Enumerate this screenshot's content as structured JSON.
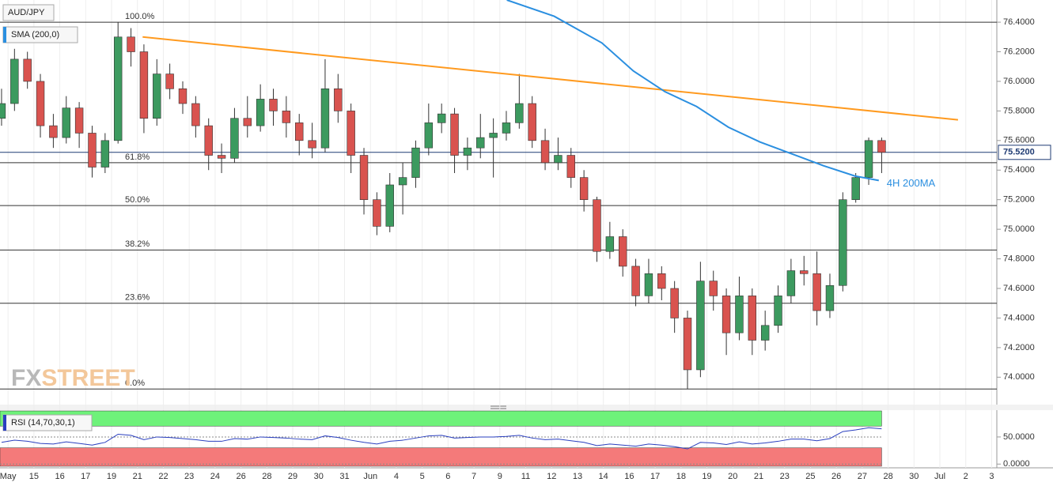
{
  "chart_data": {
    "type": "candlestick",
    "title": "AUD/JPY",
    "legend": "SMA (200,0)",
    "watermark": [
      "FX",
      "STREET"
    ],
    "up_color": "#3c9a5f",
    "down_color": "#d9534f",
    "x": [
      -0.25,
      0.25,
      0.75,
      1.25,
      1.75,
      2.25,
      2.75,
      3.25,
      3.75,
      4.25,
      4.75,
      5.25,
      5.75,
      6.25,
      6.75,
      7.25,
      7.75,
      8.25,
      8.75,
      9.25,
      9.75,
      10.25,
      10.75,
      11.25,
      11.75,
      12.25,
      12.75,
      13.25,
      13.75,
      14.25,
      14.75,
      15.25,
      15.75,
      16.25,
      16.75,
      17.25,
      17.75,
      18.25,
      18.75,
      19.25,
      19.75,
      20.25,
      20.75,
      21.25,
      21.75,
      22.25,
      22.75,
      23.25,
      23.75,
      24.25,
      24.75,
      25.25,
      25.75,
      26.25,
      26.75,
      27.25,
      27.75,
      28.25,
      28.75,
      29.25,
      29.75,
      30.25,
      30.75,
      31.25,
      31.75,
      32.25,
      32.75,
      33.25,
      33.75
    ],
    "open": [
      75.75,
      75.85,
      76.15,
      76.0,
      75.7,
      75.62,
      75.82,
      75.65,
      75.42,
      75.6,
      76.3,
      76.2,
      75.75,
      76.05,
      75.95,
      75.85,
      75.7,
      75.5,
      75.48,
      75.75,
      75.7,
      75.88,
      75.8,
      75.72,
      75.6,
      75.55,
      75.95,
      75.8,
      75.5,
      75.2,
      75.02,
      75.3,
      75.35,
      75.55,
      75.72,
      75.78,
      75.5,
      75.55,
      75.62,
      75.65,
      75.72,
      75.85,
      75.6,
      75.45,
      75.5,
      75.35,
      75.2,
      74.85,
      74.95,
      74.75,
      74.55,
      74.7,
      74.6,
      74.4,
      74.05,
      74.65,
      74.55,
      74.3,
      74.55,
      74.25,
      74.35,
      74.55,
      74.72,
      74.7,
      74.45,
      74.62,
      75.2,
      75.35,
      75.6
    ],
    "high": [
      75.95,
      76.22,
      76.2,
      76.05,
      75.78,
      75.9,
      75.86,
      75.7,
      75.65,
      76.4,
      76.36,
      76.25,
      76.15,
      76.12,
      76.0,
      75.9,
      75.75,
      75.58,
      75.82,
      75.9,
      75.98,
      75.95,
      75.9,
      75.78,
      75.72,
      76.15,
      76.05,
      75.85,
      75.55,
      75.25,
      75.38,
      75.45,
      75.6,
      75.85,
      75.85,
      75.82,
      75.62,
      75.78,
      75.75,
      75.8,
      76.05,
      75.9,
      75.68,
      75.62,
      75.55,
      75.4,
      75.22,
      75.05,
      75.0,
      74.8,
      74.8,
      74.75,
      74.65,
      74.45,
      74.78,
      74.72,
      74.6,
      74.68,
      74.6,
      74.45,
      74.62,
      74.8,
      74.82,
      74.85,
      74.7,
      75.25,
      75.38,
      75.62,
      75.62
    ],
    "low": [
      75.7,
      75.8,
      75.95,
      75.62,
      75.55,
      75.58,
      75.55,
      75.35,
      75.38,
      75.58,
      76.1,
      75.65,
      75.7,
      75.88,
      75.78,
      75.62,
      75.4,
      75.38,
      75.45,
      75.62,
      75.66,
      75.7,
      75.62,
      75.5,
      75.48,
      75.52,
      75.72,
      75.38,
      75.1,
      74.96,
      74.98,
      75.1,
      75.28,
      75.5,
      75.65,
      75.38,
      75.4,
      75.48,
      75.35,
      75.6,
      75.68,
      75.55,
      75.4,
      75.4,
      75.28,
      75.12,
      74.78,
      74.8,
      74.68,
      74.48,
      74.5,
      74.52,
      74.3,
      73.92,
      74.0,
      74.45,
      74.15,
      74.25,
      74.15,
      74.18,
      74.3,
      74.5,
      74.62,
      74.35,
      74.4,
      74.58,
      75.18,
      75.3,
      75.38
    ],
    "close": [
      75.85,
      76.15,
      76.0,
      75.7,
      75.62,
      75.82,
      75.65,
      75.42,
      75.6,
      76.3,
      76.2,
      75.75,
      76.05,
      75.95,
      75.85,
      75.7,
      75.5,
      75.48,
      75.75,
      75.7,
      75.88,
      75.8,
      75.72,
      75.6,
      75.55,
      75.95,
      75.8,
      75.5,
      75.2,
      75.02,
      75.3,
      75.35,
      75.55,
      75.72,
      75.78,
      75.5,
      75.55,
      75.62,
      75.65,
      75.72,
      75.85,
      75.6,
      75.45,
      75.5,
      75.35,
      75.2,
      74.85,
      74.95,
      74.75,
      74.55,
      74.7,
      74.6,
      74.4,
      74.05,
      74.65,
      74.55,
      74.3,
      74.55,
      74.25,
      74.35,
      74.55,
      74.72,
      74.7,
      74.45,
      74.62,
      75.2,
      75.35,
      75.6,
      75.52
    ],
    "xlim": [
      -0.31,
      38.2
    ],
    "xticks": [
      {
        "value": 0,
        "label": "May"
      },
      {
        "value": 1,
        "label": "15"
      },
      {
        "value": 2,
        "label": "16"
      },
      {
        "value": 3,
        "label": "17"
      },
      {
        "value": 4,
        "label": "19"
      },
      {
        "value": 5,
        "label": "21"
      },
      {
        "value": 6,
        "label": "22"
      },
      {
        "value": 7,
        "label": "23"
      },
      {
        "value": 8,
        "label": "24"
      },
      {
        "value": 9,
        "label": "26"
      },
      {
        "value": 10,
        "label": "28"
      },
      {
        "value": 11,
        "label": "29"
      },
      {
        "value": 12,
        "label": "30"
      },
      {
        "value": 13,
        "label": "31"
      },
      {
        "value": 14,
        "label": "Jun"
      },
      {
        "value": 15,
        "label": "4"
      },
      {
        "value": 16,
        "label": "5"
      },
      {
        "value": 17,
        "label": "6"
      },
      {
        "value": 18,
        "label": "7"
      },
      {
        "value": 19,
        "label": "9"
      },
      {
        "value": 20,
        "label": "11"
      },
      {
        "value": 21,
        "label": "12"
      },
      {
        "value": 22,
        "label": "13"
      },
      {
        "value": 23,
        "label": "14"
      },
      {
        "value": 24,
        "label": "16"
      },
      {
        "value": 25,
        "label": "17"
      },
      {
        "value": 26,
        "label": "18"
      },
      {
        "value": 27,
        "label": "19"
      },
      {
        "value": 28,
        "label": "20"
      },
      {
        "value": 29,
        "label": "21"
      },
      {
        "value": 30,
        "label": "23"
      },
      {
        "value": 31,
        "label": "25"
      },
      {
        "value": 32,
        "label": "26"
      },
      {
        "value": 33,
        "label": "27"
      },
      {
        "value": 34,
        "label": "28"
      },
      {
        "value": 35,
        "label": "30"
      },
      {
        "value": 36,
        "label": "Jul"
      },
      {
        "value": 37,
        "label": "2"
      },
      {
        "value": 38,
        "label": "3"
      }
    ],
    "ylim": [
      73.82,
      76.55
    ],
    "yticks": [
      {
        "value": 76.4,
        "label": "76.4000"
      },
      {
        "value": 76.2,
        "label": "76.2000"
      },
      {
        "value": 76.0,
        "label": "76.0000"
      },
      {
        "value": 75.8,
        "label": "75.8000"
      },
      {
        "value": 75.6,
        "label": "75.6000"
      },
      {
        "value": 75.4,
        "label": "75.4000"
      },
      {
        "value": 75.2,
        "label": "75.2000"
      },
      {
        "value": 75.0,
        "label": "75.0000"
      },
      {
        "value": 74.8,
        "label": "74.8000"
      },
      {
        "value": 74.6,
        "label": "74.6000"
      },
      {
        "value": 74.4,
        "label": "74.4000"
      },
      {
        "value": 74.2,
        "label": "74.2000"
      },
      {
        "value": 74.0,
        "label": "74.0000"
      }
    ],
    "last_price": {
      "value": 75.52,
      "label": "75.5200"
    },
    "fib_levels": [
      {
        "value": 76.4,
        "label": "100.0%"
      },
      {
        "value": 75.45,
        "label": "61.8%"
      },
      {
        "value": 75.16,
        "label": "50.0%"
      },
      {
        "value": 74.86,
        "label": "38.2%"
      },
      {
        "value": 74.5,
        "label": "23.6%"
      },
      {
        "value": 73.92,
        "label": "0.0%"
      }
    ],
    "trendline": {
      "color": "#ff9a1f",
      "x": [
        5.2,
        36.7
      ],
      "values": [
        76.3,
        75.74
      ]
    },
    "sma": {
      "name": "4H 200MA",
      "color": "#2b8fe0",
      "x": [
        19.27,
        21.1,
        22.94,
        24.16,
        25.38,
        26.6,
        27.83,
        29.05,
        30.28,
        31.5,
        32.72,
        33.64
      ],
      "values": [
        76.55,
        76.44,
        76.26,
        76.07,
        75.93,
        75.83,
        75.69,
        75.59,
        75.51,
        75.43,
        75.36,
        75.33
      ]
    },
    "rsi": {
      "label": "RSI (14,70,30,1)",
      "color": "#2a3fbf",
      "values": [
        40,
        44,
        42,
        38,
        37,
        41,
        38,
        35,
        40,
        55,
        53,
        45,
        50,
        49,
        47,
        45,
        42,
        42,
        47,
        46,
        50,
        49,
        48,
        46,
        45,
        52,
        49,
        44,
        40,
        37,
        42,
        44,
        48,
        52,
        53,
        48,
        49,
        50,
        50,
        51,
        53,
        48,
        45,
        46,
        43,
        40,
        34,
        37,
        35,
        33,
        37,
        35,
        32,
        28,
        40,
        39,
        36,
        41,
        37,
        39,
        42,
        46,
        46,
        43,
        47,
        60,
        63,
        67,
        65
      ],
      "ylim": [
        -4,
        98
      ],
      "yticks": [
        {
          "value": 50,
          "label": "50.0000"
        },
        {
          "value": 0,
          "label": "0.0000"
        }
      ],
      "overbought": 70,
      "oversold": 30,
      "overbought_color": "#6ef27a",
      "oversold_color": "#f47a7a"
    }
  }
}
